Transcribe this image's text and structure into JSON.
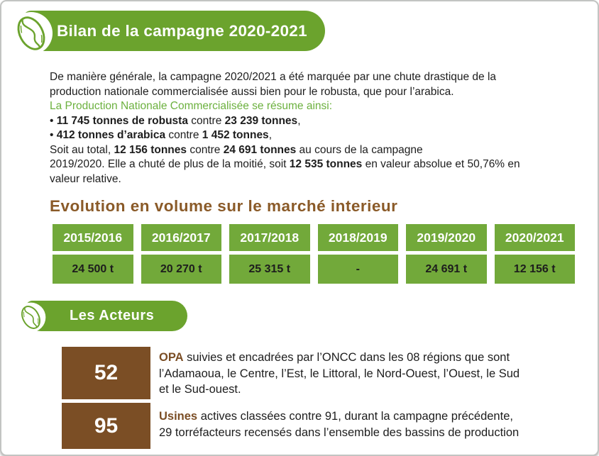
{
  "colors": {
    "banner_green": "#6BA32D",
    "table_green": "#72A93A",
    "accent_green_text": "#6CB13F",
    "heading_brown": "#8A5A28",
    "box_brown": "#7B4E25",
    "body_text": "#1d1d1d"
  },
  "icons": {
    "header_icon_1": "coffee-bean-icon",
    "header_icon_2": "coffee-bean-icon"
  },
  "banner1": {
    "title": "Bilan de la campagne 2020-2021"
  },
  "intro": {
    "lines": [
      [
        {
          "t": "De manière générale, la campagne 2020/2021 a été marquée par une chute drastique de la"
        }
      ],
      [
        {
          "t": "production nationale commercialisée aussi bien pour le robusta, que pour l’arabica."
        }
      ],
      [
        {
          "t": "La Production Nationale Commercialisée se résume ainsi:",
          "s": "g"
        }
      ],
      [
        {
          "t": "• "
        },
        {
          "t": "11 745 tonnes de robusta",
          "s": "b"
        },
        {
          "t": " contre "
        },
        {
          "t": "23 239 tonnes",
          "s": "b"
        },
        {
          "t": ","
        }
      ],
      [
        {
          "t": "• "
        },
        {
          "t": "412 tonnes d’arabica",
          "s": "b"
        },
        {
          "t": " contre "
        },
        {
          "t": "1 452 tonnes",
          "s": "b"
        },
        {
          "t": ","
        }
      ],
      [
        {
          "t": "Soit au total, "
        },
        {
          "t": "12 156 tonnes",
          "s": "b"
        },
        {
          "t": " contre "
        },
        {
          "t": "24 691 tonnes",
          "s": "b"
        },
        {
          "t": " au cours de la campagne"
        }
      ],
      [
        {
          "t": "2019/2020. Elle a chuté de plus de la moitié, soit "
        },
        {
          "t": "12 535 tonnes",
          "s": "b"
        },
        {
          "t": " en valeur absolue et 50,76% en"
        }
      ],
      [
        {
          "t": "valeur relative."
        }
      ]
    ]
  },
  "section_title": "Evolution en volume sur le marché interieur",
  "table": {
    "columns": [
      {
        "year": "2015/2016",
        "value": "24 500 t"
      },
      {
        "year": "2016/2017",
        "value": "20 270 t"
      },
      {
        "year": "2017/2018",
        "value": "25 315 t"
      },
      {
        "year": "2018/2019",
        "value": "-"
      },
      {
        "year": "2019/2020",
        "value": "24 691 t"
      },
      {
        "year": "2020/2021",
        "value": "12 156 t"
      }
    ]
  },
  "banner2": {
    "title": "Les Acteurs"
  },
  "acteurs": {
    "rows": [
      {
        "count": "52",
        "lines": [
          [
            {
              "t": "OPA",
              "s": "bb"
            },
            {
              "t": " suivies et encadrées par l’ONCC dans les 08 régions que sont"
            }
          ],
          [
            {
              "t": "l’Adamaoua, le Centre, l’Est, le Littoral, le Nord-Ouest, l’Ouest, le Sud"
            }
          ],
          [
            {
              "t": "et le Sud-ouest."
            }
          ]
        ]
      },
      {
        "count": "95",
        "lines": [
          [
            {
              "t": "Usines",
              "s": "bb"
            },
            {
              "t": " actives classées contre 91, durant la campagne précédente,"
            }
          ],
          [
            {
              "t": "29 torréfacteurs recensés dans l’ensemble des bassins de production"
            }
          ]
        ]
      }
    ]
  }
}
